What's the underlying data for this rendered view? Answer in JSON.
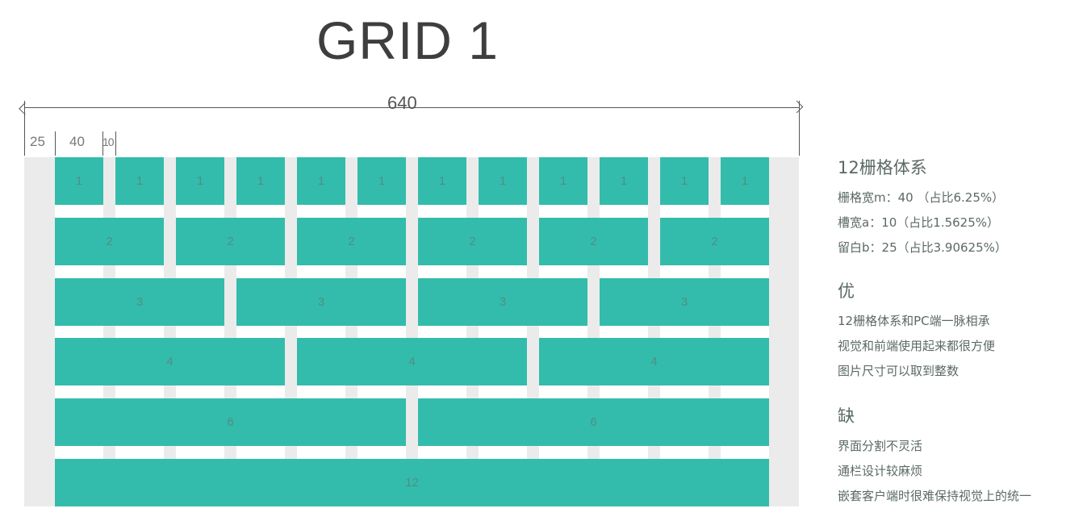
{
  "title": "GRID 1",
  "dimensions": {
    "total": "640",
    "margin": "25",
    "column": "40",
    "gutter": "10"
  },
  "grid": {
    "columns": 12,
    "rows": [
      {
        "span": 1,
        "label": "1"
      },
      {
        "span": 2,
        "label": "2"
      },
      {
        "span": 3,
        "label": "3"
      },
      {
        "span": 4,
        "label": "4"
      },
      {
        "span": 6,
        "label": "6"
      },
      {
        "span": 12,
        "label": "12"
      }
    ],
    "colors": {
      "block": "#33bcab",
      "background": "#ebebeb",
      "column": "#ffffff"
    }
  },
  "side": {
    "system": {
      "heading": "12栅格体系",
      "lines": [
        "栅格宽m：40 （占比6.25%）",
        "槽宽a：10（占比1.5625%）",
        "留白b：25（占比3.90625%）"
      ]
    },
    "pros": {
      "heading": "优",
      "lines": [
        "12栅格体系和PC端一脉相承",
        "视觉和前端使用起来都很方便",
        "图片尺寸可以取到整数"
      ]
    },
    "cons": {
      "heading": "缺",
      "lines": [
        "界面分割不灵活",
        "通栏设计较麻烦",
        "嵌套客户端时很难保持视觉上的统一"
      ]
    }
  }
}
